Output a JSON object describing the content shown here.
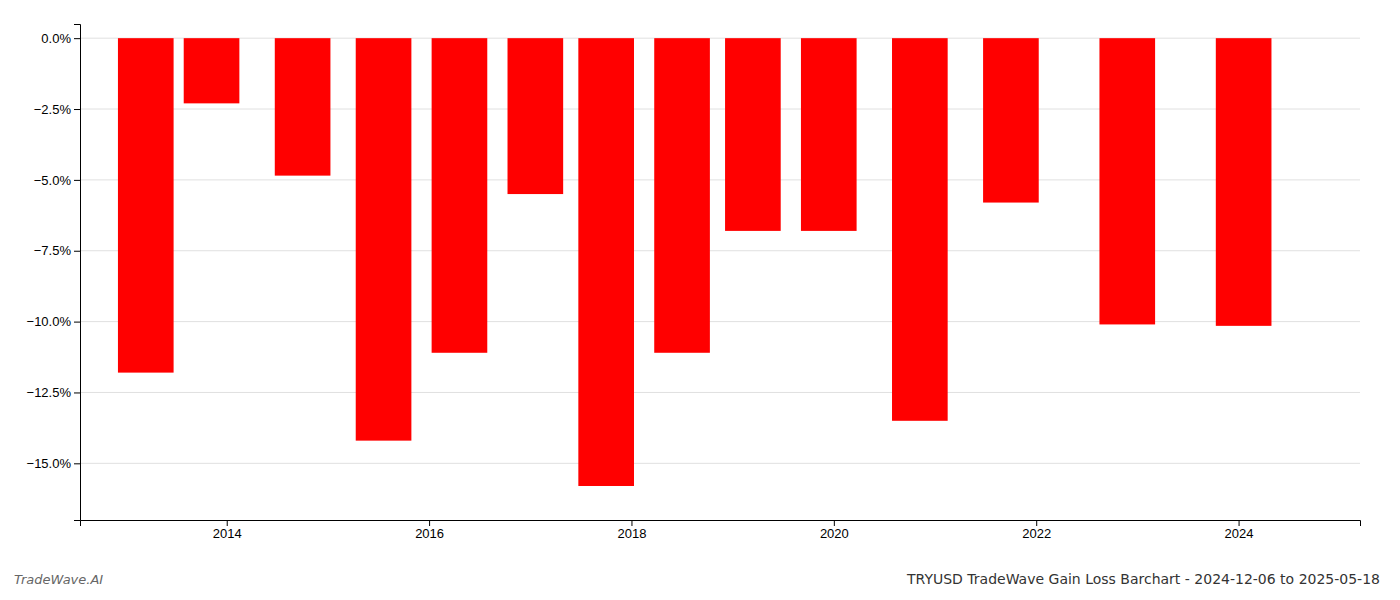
{
  "chart_data": {
    "type": "bar",
    "title": "TRYUSD TradeWave Gain Loss Barchart - 2024-12-06 to 2025-05-18",
    "annotations": [
      "TradeWave.AI"
    ],
    "x": [
      2013.2,
      2013.85,
      2014.75,
      2015.55,
      2016.3,
      2017.05,
      2017.75,
      2018.5,
      2019.2,
      2019.95,
      2020.85,
      2021.75,
      2022.9,
      2024.05
    ],
    "values": [
      -11.8,
      -2.3,
      -4.85,
      -14.2,
      -11.1,
      -5.5,
      -15.8,
      -11.1,
      -6.8,
      -6.8,
      -13.5,
      -5.8,
      -10.1,
      -10.15
    ],
    "color": "#ff0000",
    "xlim": [
      2012.55,
      2025.2
    ],
    "xticks": [
      2014,
      2016,
      2018,
      2020,
      2022,
      2024
    ],
    "ylim": [
      -17.0,
      0.5
    ],
    "yticks": [
      {
        "value": 0.0,
        "label": "0.0%"
      },
      {
        "value": -2.5,
        "label": "−2.5%"
      },
      {
        "value": -5.0,
        "label": "−5.0%"
      },
      {
        "value": -7.5,
        "label": "−7.5%"
      },
      {
        "value": -10.0,
        "label": "−10.0%"
      },
      {
        "value": -12.5,
        "label": "−12.5%"
      },
      {
        "value": -15.0,
        "label": "−15.0%"
      }
    ],
    "grid": true
  }
}
